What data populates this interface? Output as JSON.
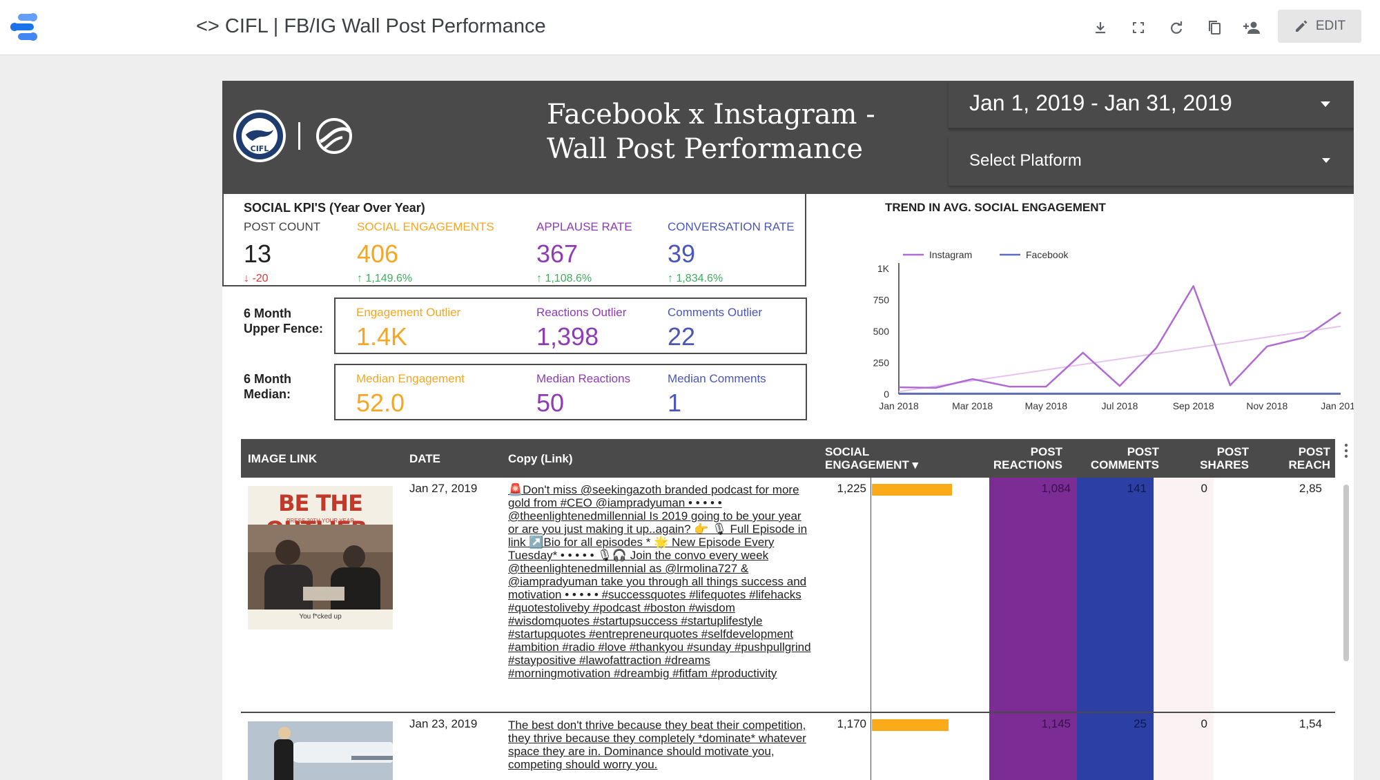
{
  "app": {
    "title": "<> CIFL | FB/IG Wall Post Performance",
    "edit_label": "EDIT",
    "tools": [
      "download-icon",
      "fullscreen-icon",
      "refresh-icon",
      "copy-icon",
      "share-icon"
    ]
  },
  "header": {
    "title": "Facebook x Instagram - Wall Post Performance",
    "date_range": "Jan 1, 2019 - Jan 31, 2019",
    "platform_placeholder": "Select Platform",
    "logo_text": "CIFL"
  },
  "kpis": {
    "heading": "SOCIAL KPI'S (Year Over Year)",
    "items": [
      {
        "label": "POST COUNT",
        "value": "13",
        "delta": "-20",
        "direction": "down"
      },
      {
        "label": "SOCIAL ENGAGEMENTS",
        "value": "406",
        "delta": "1,149.6%",
        "direction": "up"
      },
      {
        "label": "APPLAUSE RATE",
        "value": "367",
        "delta": "1,108.6%",
        "direction": "up"
      },
      {
        "label": "CONVERSATION RATE",
        "value": "39",
        "delta": "1,834.6%",
        "direction": "up"
      }
    ]
  },
  "upper_fence": {
    "label": "6 Month Upper Fence:",
    "items": [
      {
        "label": "Engagement Outlier",
        "value": "1.4K"
      },
      {
        "label": "Reactions Outlier",
        "value": "1,398"
      },
      {
        "label": "Comments Outlier",
        "value": "22"
      }
    ]
  },
  "median": {
    "label": "6 Month Median:",
    "items": [
      {
        "label": "Median Engagement",
        "value": "52.0"
      },
      {
        "label": "Median Reactions",
        "value": "50"
      },
      {
        "label": "Median Comments",
        "value": "1"
      }
    ]
  },
  "chart_data": {
    "type": "line",
    "title": "TREND IN AVG. SOCIAL ENGAGEMENT",
    "x": [
      "Jan 2018",
      "Feb 2018",
      "Mar 2018",
      "Apr 2018",
      "May 2018",
      "Jun 2018",
      "Jul 2018",
      "Aug 2018",
      "Sep 2018",
      "Oct 2018",
      "Nov 2018",
      "Dec 2018",
      "Jan 2019"
    ],
    "x_tick_labels": [
      "Jan 2018",
      "Mar 2018",
      "May 2018",
      "Jul 2018",
      "Sep 2018",
      "Nov 2018",
      "Jan 2019"
    ],
    "y_ticks": [
      0,
      250,
      500,
      750,
      1000
    ],
    "y_tick_labels": [
      "0",
      "250",
      "500",
      "750",
      "1K"
    ],
    "ylim": [
      0,
      1000
    ],
    "legend_position": "top-left",
    "series": [
      {
        "name": "Instagram",
        "color": "#b06ad4",
        "values": [
          55,
          50,
          120,
          60,
          60,
          330,
          65,
          370,
          860,
          70,
          380,
          450,
          650
        ]
      },
      {
        "name": "Facebook",
        "color": "#5c6bc0",
        "values": [
          5,
          5,
          5,
          5,
          5,
          5,
          5,
          5,
          5,
          5,
          5,
          5,
          5
        ]
      }
    ],
    "trendline": {
      "series": "Instagram",
      "color": "#e6c4ef",
      "start": 20,
      "end": 540
    }
  },
  "table": {
    "columns": [
      "IMAGE LINK",
      "DATE",
      "Copy (Link)",
      "SOCIAL ENGAGEMENT ▾",
      "POST REACTIONS",
      "POST COMMENTS",
      "POST SHARES",
      "POST REACH"
    ],
    "engagement_max": 1225,
    "rows": [
      {
        "thumb_headline": "BE THE OUTLIER.",
        "thumb_sub": "PRESS 20TH YOUR YEAR",
        "thumb_caption": "You f*cked up",
        "date": "Jan 27, 2019",
        "copy": "🚨Don't miss @seekingazoth branded podcast for more gold from #CEO @iampradyuman • • • • • @theenlightenedmillennial Is 2019 going to be your year or are you just making it up..again? 👉 🎙 Full Episode in link ↗️Bio for all episodes * 🌟 New Episode Every Tuesday* • • • • • 🎙🎧 Join the convo every week @theenlightenedmillennial as @lrmolina727 & @iampradyuman take you through all things success and motivation • • • • • #successquotes #lifequotes #lifehacks #quotestoliveby #podcast #boston #wisdom #wisdomquotes #startupsuccess #startuplifestyle #startupquotes #entrepreneurquotes #selfdevelopment #ambition #radio #love #thankyou #sunday #pushpullgrind #staypositive #lawofattraction #dreams #morningmotivation #dreambig #fitfam #productivity",
        "engagement": 1225,
        "engagement_label": "1,225",
        "reactions": "1,084",
        "comments": "141",
        "shares": "0",
        "reach": "2,85"
      },
      {
        "date": "Jan 23, 2019",
        "copy": "The best don't thrive because they beat their competition, they thrive because they completely *dominate* whatever space they are in. Dominance should motivate you, competing should worry you.",
        "engagement": 1170,
        "engagement_label": "1,170",
        "reactions": "1,145",
        "comments": "25",
        "shares": "0",
        "reach": "1,54"
      }
    ]
  }
}
